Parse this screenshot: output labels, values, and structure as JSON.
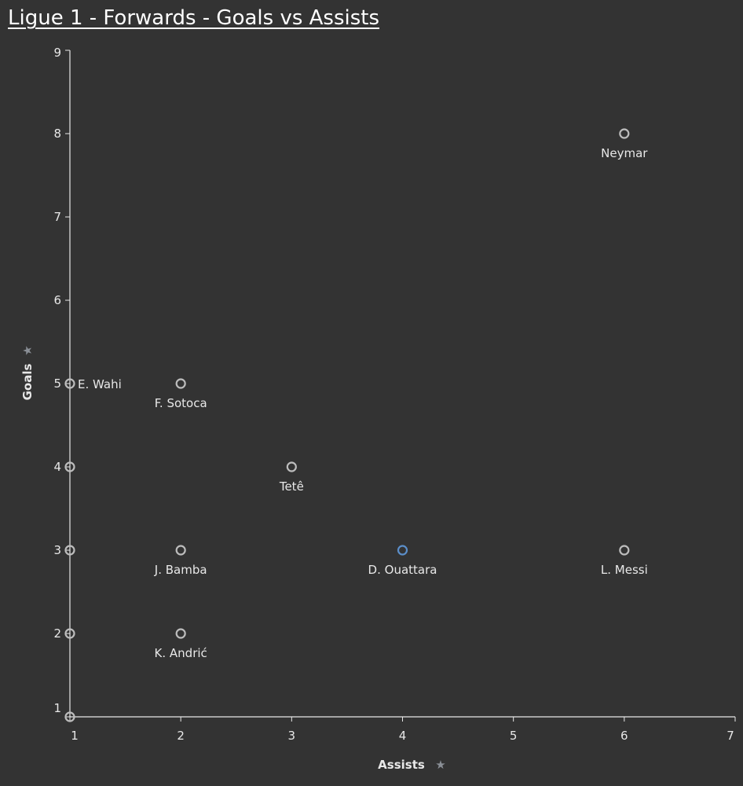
{
  "chart_data": {
    "type": "scatter",
    "title": "Ligue 1 - Forwards - Goals vs Assists",
    "xlabel": "Assists",
    "ylabel": "Goals",
    "xlim": [
      1,
      7
    ],
    "ylim": [
      1,
      9
    ],
    "xticks": [
      "1",
      "2",
      "3",
      "4",
      "5",
      "6",
      "7"
    ],
    "yticks": [
      "1",
      "2",
      "3",
      "4",
      "5",
      "6",
      "7",
      "8",
      "9"
    ],
    "grid": false,
    "colors": {
      "point": "#bdbdbd",
      "highlight": "#5b8ec9",
      "axis": "#e8e8e8",
      "pin": "#8a8f96"
    },
    "points": [
      {
        "x": 6,
        "y": 8,
        "label": "Neymar"
      },
      {
        "x": 1,
        "y": 5,
        "label": "E. Wahi"
      },
      {
        "x": 2,
        "y": 5,
        "label": "F. Sotoca"
      },
      {
        "x": 3,
        "y": 4,
        "label": "Tetê"
      },
      {
        "x": 2,
        "y": 3,
        "label": "J. Bamba"
      },
      {
        "x": 4,
        "y": 3,
        "label": "D. Ouattara",
        "highlight": true
      },
      {
        "x": 6,
        "y": 3,
        "label": "L. Messi"
      },
      {
        "x": 2,
        "y": 2,
        "label": "K. Andrić"
      },
      {
        "x": 1,
        "y": 4,
        "label": ""
      },
      {
        "x": 1,
        "y": 3,
        "label": ""
      },
      {
        "x": 1,
        "y": 2,
        "label": ""
      },
      {
        "x": 1,
        "y": 1,
        "label": ""
      }
    ]
  }
}
